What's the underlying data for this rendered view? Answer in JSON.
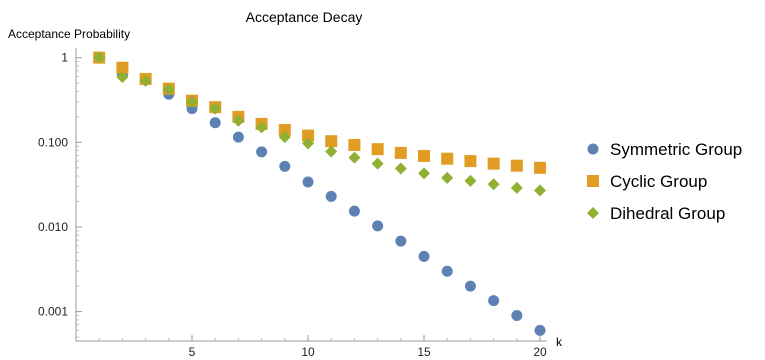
{
  "chart_data": {
    "type": "scatter",
    "title": "Acceptance Decay",
    "xlabel": "k",
    "ylabel": "Acceptance Probability",
    "xlim": [
      0,
      20.3
    ],
    "ylim": [
      0.00045,
      1.3
    ],
    "yscale": "log",
    "x_ticks": [
      5,
      10,
      15,
      20
    ],
    "y_ticks": [
      {
        "value": 1,
        "label": "1"
      },
      {
        "value": 0.1,
        "label": "0.100"
      },
      {
        "value": 0.01,
        "label": "0.010"
      },
      {
        "value": 0.001,
        "label": "0.001"
      }
    ],
    "grid": false,
    "legend_position": "right",
    "x": [
      1,
      2,
      3,
      4,
      5,
      6,
      7,
      8,
      9,
      10,
      11,
      12,
      13,
      14,
      15,
      16,
      17,
      18,
      19,
      20
    ],
    "series": [
      {
        "name": "Symmetric Group",
        "marker": "circle",
        "color": "#5e81b5",
        "values": [
          1.0,
          0.62,
          0.55,
          0.37,
          0.25,
          0.17,
          0.115,
          0.077,
          0.052,
          0.034,
          0.023,
          0.0154,
          0.0103,
          0.0068,
          0.0045,
          0.003,
          0.002,
          0.00135,
          0.0009,
          0.0006
        ]
      },
      {
        "name": "Cyclic Group",
        "marker": "square",
        "color": "#e19c24",
        "values": [
          1.0,
          0.76,
          0.56,
          0.43,
          0.31,
          0.26,
          0.2,
          0.165,
          0.14,
          0.12,
          0.103,
          0.093,
          0.083,
          0.075,
          0.069,
          0.064,
          0.06,
          0.056,
          0.053,
          0.05
        ]
      },
      {
        "name": "Dihedral Group",
        "marker": "diamond",
        "color": "#8fb032",
        "values": [
          1.0,
          0.59,
          0.53,
          0.42,
          0.3,
          0.25,
          0.18,
          0.15,
          0.115,
          0.097,
          0.078,
          0.066,
          0.056,
          0.049,
          0.043,
          0.038,
          0.035,
          0.032,
          0.029,
          0.027
        ]
      }
    ]
  }
}
